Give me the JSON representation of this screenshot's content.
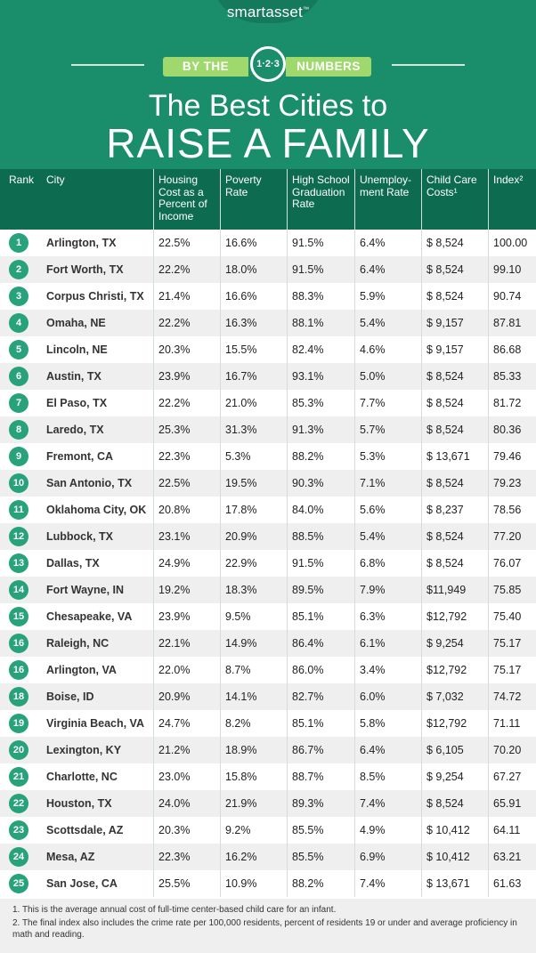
{
  "brand": {
    "name": "smartasset",
    "tm": "™"
  },
  "byline": {
    "left": "BY THE",
    "badge": "1·2·3",
    "right": "NUMBERS"
  },
  "title": {
    "line1": "The Best Cities to",
    "line2": "RAISE A FAMILY"
  },
  "colors": {
    "header_bg": "#1a8e6b",
    "table_header_bg": "#0d6b50",
    "rank_badge": "#27a27a",
    "ribbon": "#9fd86c",
    "row_alt": "#efefef"
  },
  "chart_data": {
    "type": "table",
    "columns": [
      "Rank",
      "City",
      "Housing Cost as a Percent of Income",
      "Poverty Rate",
      "High School Graduation Rate",
      "Unemploy-ment Rate",
      "Child Care Costs¹",
      "Index²"
    ],
    "rows": [
      [
        "1",
        "Arlington, TX",
        "22.5%",
        "16.6%",
        "91.5%",
        "6.4%",
        "$ 8,524",
        "100.00"
      ],
      [
        "2",
        "Fort Worth, TX",
        "22.2%",
        "18.0%",
        "91.5%",
        "6.4%",
        "$ 8,524",
        "99.10"
      ],
      [
        "3",
        "Corpus Christi, TX",
        "21.4%",
        "16.6%",
        "88.3%",
        "5.9%",
        "$ 8,524",
        "90.74"
      ],
      [
        "4",
        "Omaha, NE",
        "22.2%",
        "16.3%",
        "88.1%",
        "5.4%",
        "$ 9,157",
        "87.81"
      ],
      [
        "5",
        "Lincoln, NE",
        "20.3%",
        "15.5%",
        "82.4%",
        "4.6%",
        "$ 9,157",
        "86.68"
      ],
      [
        "6",
        "Austin, TX",
        "23.9%",
        "16.7%",
        "93.1%",
        "5.0%",
        "$ 8,524",
        "85.33"
      ],
      [
        "7",
        "El Paso, TX",
        "22.2%",
        "21.0%",
        "85.3%",
        "7.7%",
        "$ 8,524",
        "81.72"
      ],
      [
        "8",
        "Laredo, TX",
        "25.3%",
        "31.3%",
        "91.3%",
        "5.7%",
        "$ 8,524",
        "80.36"
      ],
      [
        "9",
        "Fremont, CA",
        "22.3%",
        "5.3%",
        "88.2%",
        "5.3%",
        "$ 13,671",
        "79.46"
      ],
      [
        "10",
        "San Antonio, TX",
        "22.5%",
        "19.5%",
        "90.3%",
        "7.1%",
        "$ 8,524",
        "79.23"
      ],
      [
        "11",
        "Oklahoma City, OK",
        "20.8%",
        "17.8%",
        "84.0%",
        "5.6%",
        "$ 8,237",
        "78.56"
      ],
      [
        "12",
        "Lubbock, TX",
        "23.1%",
        "20.9%",
        "88.5%",
        "5.4%",
        "$ 8,524",
        "77.20"
      ],
      [
        "13",
        "Dallas, TX",
        "24.9%",
        "22.9%",
        "91.5%",
        "6.8%",
        "$ 8,524",
        "76.07"
      ],
      [
        "14",
        "Fort Wayne, IN",
        "19.2%",
        "18.3%",
        "89.5%",
        "7.9%",
        "$11,949",
        "75.85"
      ],
      [
        "15",
        "Chesapeake, VA",
        "23.9%",
        "9.5%",
        "85.1%",
        "6.3%",
        "$12,792",
        "75.40"
      ],
      [
        "16",
        "Raleigh, NC",
        "22.1%",
        "14.9%",
        "86.4%",
        "6.1%",
        "$ 9,254",
        "75.17"
      ],
      [
        "16",
        "Arlington, VA",
        "22.0%",
        "8.7%",
        "86.0%",
        "3.4%",
        "$12,792",
        "75.17"
      ],
      [
        "18",
        "Boise, ID",
        "20.9%",
        "14.1%",
        "82.7%",
        "6.0%",
        "$ 7,032",
        "74.72"
      ],
      [
        "19",
        "Virginia Beach, VA",
        "24.7%",
        "8.2%",
        "85.1%",
        "5.8%",
        "$12,792",
        "71.11"
      ],
      [
        "20",
        "Lexington, KY",
        "21.2%",
        "18.9%",
        "86.7%",
        "6.4%",
        "$ 6,105",
        "70.20"
      ],
      [
        "21",
        "Charlotte, NC",
        "23.0%",
        "15.8%",
        "88.7%",
        "8.5%",
        "$ 9,254",
        "67.27"
      ],
      [
        "22",
        "Houston, TX",
        "24.0%",
        "21.9%",
        "89.3%",
        "7.4%",
        "$ 8,524",
        "65.91"
      ],
      [
        "23",
        "Scottsdale, AZ",
        "20.3%",
        "9.2%",
        "85.5%",
        "4.9%",
        "$ 10,412",
        "64.11"
      ],
      [
        "24",
        "Mesa, AZ",
        "22.3%",
        "16.2%",
        "85.5%",
        "6.9%",
        "$ 10,412",
        "63.21"
      ],
      [
        "25",
        "San Jose, CA",
        "25.5%",
        "10.9%",
        "88.2%",
        "7.4%",
        "$ 13,671",
        "61.63"
      ]
    ]
  },
  "footnotes": [
    "1. This is the average annual cost of full-time center-based child care for an infant.",
    "2. The final index also includes the crime rate per 100,000 residents, percent of residents 19 or under and average proficiency in math and reading."
  ]
}
